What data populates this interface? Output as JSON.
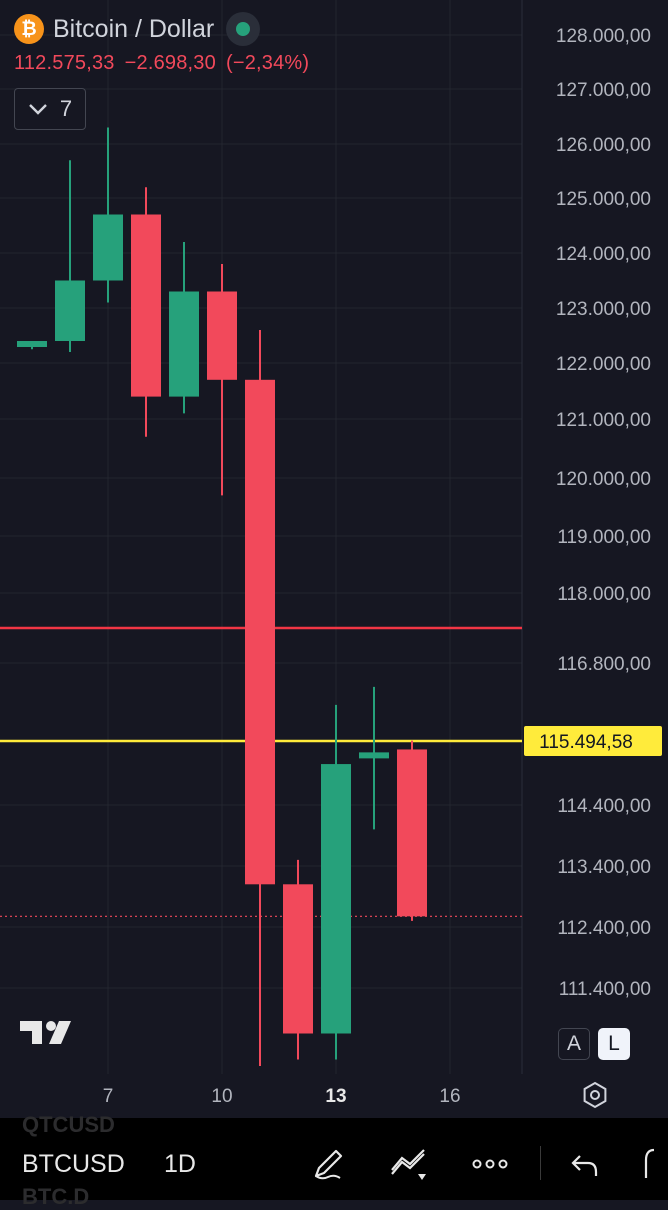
{
  "header": {
    "logo_glyph": "₿",
    "title": "Bitcoin / Dollar",
    "last": "112.575,33",
    "change": "−2.698,30",
    "change_pct": "(−2,34%)",
    "indicator_count": "7",
    "colors": {
      "down": "#f2495b",
      "up": "#26a17b",
      "market_open": "#26a17b"
    }
  },
  "chart_data": {
    "type": "candlestick",
    "title": "Bitcoin / Dollar",
    "x_ticks": [
      "7",
      "10",
      "13",
      "16"
    ],
    "x_tick_highlight": "13",
    "y_ticks": [
      "128.000,00",
      "127.000,00",
      "126.000,00",
      "125.000,00",
      "124.000,00",
      "123.000,00",
      "122.000,00",
      "121.000,00",
      "120.000,00",
      "119.000,00",
      "118.000,00",
      "116.800,00",
      "114.400,00",
      "113.400,00",
      "112.400,00",
      "111.400,00"
    ],
    "candles": [
      {
        "day": 5,
        "open": 122300,
        "high": 122400,
        "low": 122250,
        "close": 122400
      },
      {
        "day": 6,
        "open": 122400,
        "high": 125700,
        "low": 122200,
        "close": 123500
      },
      {
        "day": 7,
        "open": 123500,
        "high": 126300,
        "low": 123100,
        "close": 124700
      },
      {
        "day": 8,
        "open": 124700,
        "high": 125200,
        "low": 120700,
        "close": 121400
      },
      {
        "day": 9,
        "open": 121400,
        "high": 124200,
        "low": 121100,
        "close": 123300
      },
      {
        "day": 10,
        "open": 123300,
        "high": 123800,
        "low": 119700,
        "close": 121700
      },
      {
        "day": 11,
        "open": 121700,
        "high": 122600,
        "low": 110200,
        "close": 113100
      },
      {
        "day": 12,
        "open": 113100,
        "high": 113500,
        "low": 110300,
        "close": 110700
      },
      {
        "day": 13,
        "open": 110700,
        "high": 116100,
        "low": 110300,
        "close": 115100
      },
      {
        "day": 14,
        "open": 115200,
        "high": 116400,
        "low": 114000,
        "close": 115300
      },
      {
        "day": 15,
        "open": 115350,
        "high": 115500,
        "low": 112500,
        "close": 112575
      }
    ],
    "horizontal_lines": [
      {
        "price": 117400,
        "color": "#f23645"
      },
      {
        "price": 115494.58,
        "color": "#ffeb3b",
        "label": "115.494,58"
      }
    ],
    "last_price": 112575.33,
    "colors": {
      "up": "#26a17b",
      "down": "#f2495b",
      "background": "#161722",
      "grid": "#23252f",
      "axis_text": "#b2b5be"
    }
  },
  "controls": {
    "auto_scale": "A",
    "log_scale": "L"
  },
  "toolbar": {
    "ghost_top": "QTCUSD",
    "symbol": "BTCUSD",
    "interval": "1D",
    "ghost_bottom": "BTC.D",
    "icons": [
      "pen-icon",
      "trend-tools-icon",
      "more-dots-icon",
      "undo-icon"
    ]
  }
}
